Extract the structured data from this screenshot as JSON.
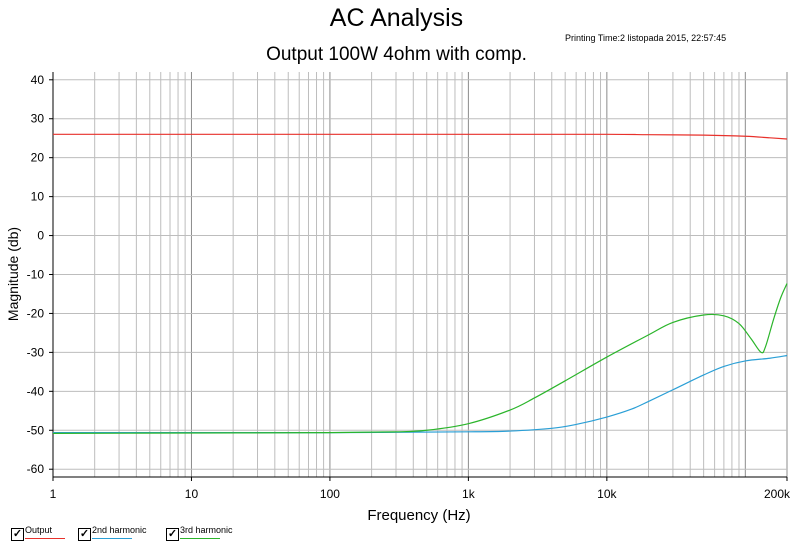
{
  "header": {
    "title": "AC Analysis",
    "printing_time": "Printing Time:2 listopada 2015, 22:57:45",
    "subtitle": "Output 100W 4ohm with comp."
  },
  "chart_data": {
    "type": "line",
    "title": "Output 100W 4ohm with comp.",
    "xlabel": "Frequency (Hz)",
    "ylabel": "Magnitude (db)",
    "xscale": "log",
    "xlim": [
      1,
      200000
    ],
    "ylim": [
      -62,
      42
    ],
    "xticks": [
      {
        "value": 1,
        "label": "1"
      },
      {
        "value": 10,
        "label": "10"
      },
      {
        "value": 100,
        "label": "100"
      },
      {
        "value": 1000,
        "label": "1k"
      },
      {
        "value": 10000,
        "label": "10k"
      },
      {
        "value": 200000,
        "label": "200k"
      }
    ],
    "yticks": [
      {
        "value": 40,
        "label": "40"
      },
      {
        "value": 30,
        "label": "30"
      },
      {
        "value": 20,
        "label": "20"
      },
      {
        "value": 10,
        "label": "10"
      },
      {
        "value": 0,
        "label": "0"
      },
      {
        "value": -10,
        "label": "-10"
      },
      {
        "value": -20,
        "label": "-20"
      },
      {
        "value": -30,
        "label": "-30"
      },
      {
        "value": -40,
        "label": "-40"
      },
      {
        "value": -50,
        "label": "-50"
      },
      {
        "value": -60,
        "label": "-60"
      }
    ],
    "grid": true,
    "legend_position": "bottom-left",
    "series": [
      {
        "name": "Output",
        "color": "#e8312b",
        "x": [
          1,
          10,
          100,
          1000,
          10000,
          20000,
          50000,
          100000,
          150000,
          200000
        ],
        "y": [
          26,
          26,
          26,
          26,
          26,
          25.9,
          25.8,
          25.5,
          25.1,
          24.8
        ]
      },
      {
        "name": "2nd harmonic",
        "color": "#2a9fd6",
        "x": [
          1,
          10,
          100,
          1000,
          2000,
          4000,
          6000,
          10000,
          15000,
          20000,
          30000,
          50000,
          70000,
          100000,
          150000,
          200000
        ],
        "y": [
          -50.6,
          -50.6,
          -50.6,
          -50.4,
          -50.2,
          -49.5,
          -48.5,
          -46.6,
          -44.6,
          -42.6,
          -39.6,
          -35.8,
          -33.6,
          -32.2,
          -31.5,
          -30.8
        ]
      },
      {
        "name": "3rd harmonic",
        "color": "#2bb52b",
        "x": [
          1,
          10,
          100,
          300,
          500,
          1000,
          2000,
          3000,
          5000,
          10000,
          20000,
          30000,
          50000,
          70000,
          90000,
          110000,
          130000,
          140000,
          160000,
          180000,
          200000
        ],
        "y": [
          -50.8,
          -50.7,
          -50.6,
          -50.4,
          -50.0,
          -48.3,
          -44.8,
          -41.7,
          -37.3,
          -31.2,
          -25.5,
          -22.3,
          -20.4,
          -20.6,
          -22.6,
          -26.5,
          -30.0,
          -28.5,
          -21.5,
          -16.0,
          -12.3
        ]
      }
    ]
  }
}
